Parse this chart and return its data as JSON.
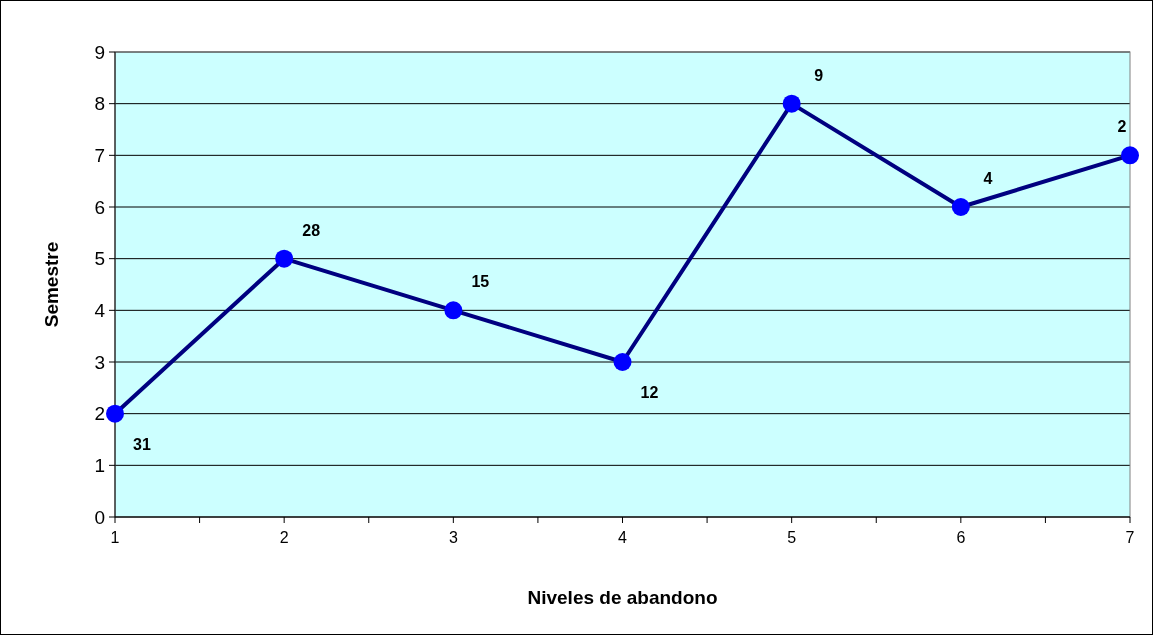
{
  "chart_data": {
    "type": "line",
    "xlabel": "Niveles de abandono",
    "ylabel": "Semestre",
    "x": [
      1,
      2,
      3,
      4,
      5,
      6,
      7
    ],
    "series": [
      {
        "color": "#000080",
        "values": [
          2,
          5,
          4,
          3,
          8,
          6,
          7
        ]
      }
    ],
    "annotations": [
      {
        "text": "31",
        "x": 1,
        "y": 2
      },
      {
        "text": "28",
        "x": 2,
        "y": 5
      },
      {
        "text": "15",
        "x": 3,
        "y": 4
      },
      {
        "text": "12",
        "x": 4,
        "y": 3
      },
      {
        "text": "9",
        "x": 5,
        "y": 8
      },
      {
        "text": "4",
        "x": 6,
        "y": 6
      },
      {
        "text": "2",
        "x": 7,
        "y": 7
      }
    ],
    "xlim": [
      1,
      7
    ],
    "xticks": [
      1,
      {
        "value": 1.5,
        "label": null
      },
      2,
      {
        "value": 2.5,
        "label": null
      },
      3,
      {
        "value": 3.5,
        "label": null
      },
      4,
      {
        "value": 4.5,
        "label": null
      },
      5,
      {
        "value": 5.5,
        "label": null
      },
      6,
      {
        "value": 6.5,
        "label": null
      },
      7
    ],
    "ylim": [
      0,
      9
    ],
    "yticks": [
      0,
      1,
      2,
      3,
      4,
      5,
      6,
      7,
      8,
      9
    ],
    "grid": "y",
    "marker": "circle",
    "line_style": "solid"
  }
}
